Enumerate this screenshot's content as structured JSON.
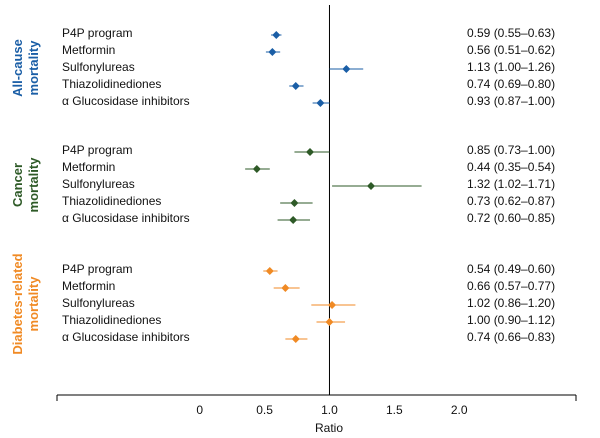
{
  "chart_data": {
    "type": "forest",
    "x_label": "Ratio",
    "xlim": [
      -1.1,
      2.9
    ],
    "xticks": [
      0,
      0.5,
      {
        "value": 1,
        "label": "1.0"
      },
      1.5,
      {
        "value": 2,
        "label": "2.0"
      }
    ],
    "reference_line": 1,
    "groups": [
      {
        "name": [
          "All-cause",
          "mortality"
        ],
        "color": "#1a5ea6",
        "categories": [
          "P4P program",
          "Metformin",
          "Sulfonylureas",
          "Thiazolidinediones",
          "α Glucosidase inhibitors"
        ],
        "values": [
          0.59,
          0.56,
          1.13,
          0.74,
          0.93
        ],
        "lower": [
          0.55,
          0.51,
          1.0,
          0.69,
          0.87
        ],
        "upper": [
          0.63,
          0.62,
          1.26,
          0.8,
          1.0
        ],
        "value_labels": [
          "0.59 (0.55–0.63)",
          "0.56 (0.51–0.62)",
          "1.13 (1.00–1.26)",
          "0.74 (0.69–0.80)",
          "0.93 (0.87–1.00)"
        ]
      },
      {
        "name": [
          "Cancer",
          "mortality"
        ],
        "color": "#2e5a27",
        "categories": [
          "P4P program",
          "Metformin",
          "Sulfonylureas",
          "Thiazolidinediones",
          "α Glucosidase inhibitors"
        ],
        "values": [
          0.85,
          0.44,
          1.32,
          0.73,
          0.72
        ],
        "lower": [
          0.73,
          0.35,
          1.02,
          0.62,
          0.6
        ],
        "upper": [
          1.0,
          0.54,
          1.71,
          0.87,
          0.85
        ],
        "value_labels": [
          "0.85 (0.73–1.00)",
          "0.44 (0.35–0.54)",
          "1.32 (1.02–1.71)",
          "0.73 (0.62–0.87)",
          "0.72 (0.60–0.85)"
        ]
      },
      {
        "name": [
          "Diabetes-related",
          "mortality"
        ],
        "color": "#f08a24",
        "categories": [
          "P4P program",
          "Metformin",
          "Sulfonylureas",
          "Thiazolidinediones",
          "α Glucosidase inhibitors"
        ],
        "values": [
          0.54,
          0.66,
          1.02,
          1.0,
          0.74
        ],
        "lower": [
          0.49,
          0.57,
          0.86,
          0.9,
          0.66
        ],
        "upper": [
          0.6,
          0.77,
          1.2,
          1.12,
          0.83
        ],
        "value_labels": [
          "0.54 (0.49–0.60)",
          "0.66 (0.57–0.77)",
          "1.02 (0.86–1.20)",
          "1.00 (0.90–1.12)",
          "0.74 (0.66–0.83)"
        ]
      }
    ]
  }
}
